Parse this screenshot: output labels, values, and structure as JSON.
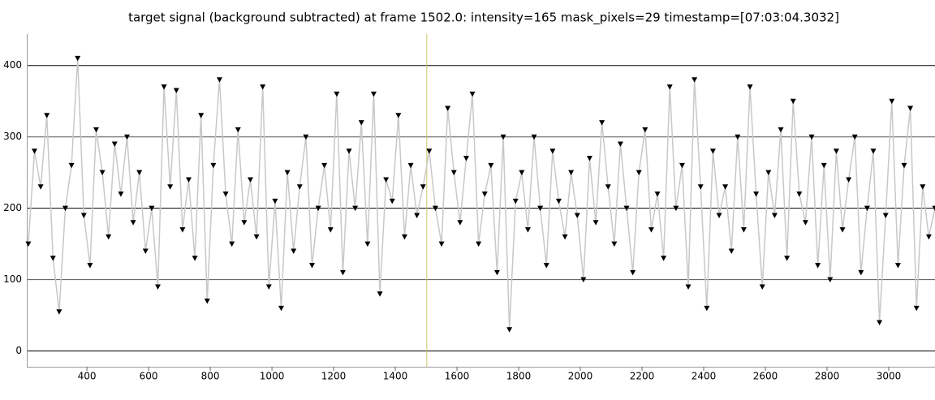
{
  "chart_data": {
    "type": "line",
    "title": "target signal (background subtracted) at frame 1502.0: intensity=165 mask_pixels=29 timestamp=[07:03:04.3032]",
    "x": [
      210,
      230,
      250,
      270,
      290,
      310,
      330,
      350,
      370,
      390,
      410,
      430,
      450,
      470,
      490,
      510,
      530,
      550,
      570,
      590,
      610,
      630,
      650,
      670,
      690,
      710,
      730,
      750,
      770,
      790,
      810,
      830,
      850,
      870,
      890,
      910,
      930,
      950,
      970,
      990,
      1010,
      1030,
      1050,
      1070,
      1090,
      1110,
      1130,
      1150,
      1170,
      1190,
      1210,
      1230,
      1250,
      1270,
      1290,
      1310,
      1330,
      1350,
      1370,
      1390,
      1410,
      1430,
      1450,
      1470,
      1490,
      1510,
      1530,
      1550,
      1570,
      1590,
      1610,
      1630,
      1650,
      1670,
      1690,
      1710,
      1730,
      1750,
      1770,
      1790,
      1810,
      1830,
      1850,
      1870,
      1890,
      1910,
      1930,
      1950,
      1970,
      1990,
      2010,
      2030,
      2050,
      2070,
      2090,
      2110,
      2130,
      2150,
      2170,
      2190,
      2210,
      2230,
      2250,
      2270,
      2290,
      2310,
      2330,
      2350,
      2370,
      2390,
      2410,
      2430,
      2450,
      2470,
      2490,
      2510,
      2530,
      2550,
      2570,
      2590,
      2610,
      2630,
      2650,
      2670,
      2690,
      2710,
      2730,
      2750,
      2770,
      2790,
      2810,
      2830,
      2850,
      2870,
      2890,
      2910,
      2930,
      2950,
      2970,
      2990,
      3010,
      3030,
      3050,
      3070,
      3090,
      3110,
      3130,
      3150
    ],
    "series": [
      {
        "name": "intensity",
        "color": "#000000",
        "line_color": "#c8c8c8",
        "values": [
          150,
          280,
          230,
          330,
          130,
          55,
          200,
          260,
          410,
          190,
          120,
          310,
          250,
          160,
          290,
          220,
          300,
          180,
          250,
          140,
          200,
          90,
          370,
          230,
          365,
          170,
          240,
          130,
          330,
          70,
          260,
          380,
          220,
          150,
          310,
          180,
          240,
          160,
          370,
          90,
          210,
          60,
          250,
          140,
          230,
          300,
          120,
          200,
          260,
          170,
          360,
          110,
          280,
          200,
          320,
          150,
          360,
          80,
          240,
          210,
          330,
          160,
          260,
          190,
          230,
          280,
          200,
          150,
          340,
          250,
          180,
          270,
          360,
          150,
          220,
          260,
          110,
          300,
          30,
          210,
          250,
          170,
          300,
          200,
          120,
          280,
          210,
          160,
          250,
          190,
          100,
          270,
          180,
          320,
          230,
          150,
          290,
          200,
          110,
          250,
          310,
          170,
          220,
          130,
          370,
          200,
          260,
          90,
          380,
          230,
          60,
          280,
          190,
          230,
          140,
          300,
          170,
          370,
          220,
          90,
          250,
          190,
          310,
          130,
          350,
          220,
          180,
          300,
          120,
          260,
          100,
          280,
          170,
          240,
          300,
          110,
          200,
          280,
          40,
          190,
          350,
          120,
          260,
          340,
          60,
          230,
          160,
          200
        ]
      }
    ],
    "cursor": {
      "x": 1502,
      "color": "#c8c864"
    },
    "xlim": [
      205,
      3150
    ],
    "ylim": [
      -22,
      444
    ],
    "xticks": [
      400,
      600,
      800,
      1000,
      1200,
      1400,
      1600,
      1800,
      2000,
      2200,
      2400,
      2600,
      2800,
      3000
    ],
    "yticks": [
      0,
      100,
      200,
      300,
      400
    ],
    "grid": true
  }
}
